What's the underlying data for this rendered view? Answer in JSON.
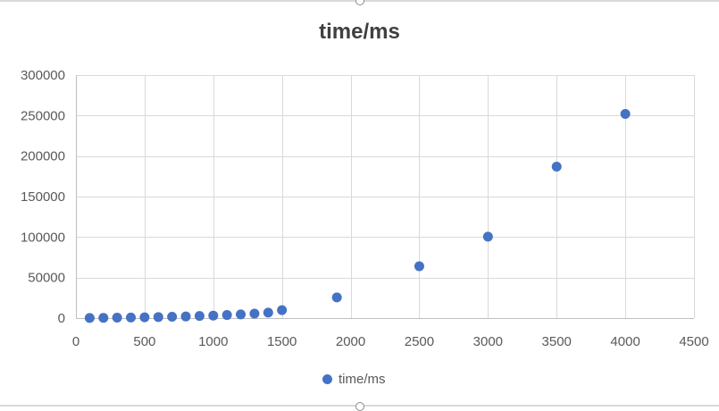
{
  "chart_data": {
    "type": "scatter",
    "title": "time/ms",
    "xlabel": "",
    "ylabel": "",
    "xlim": [
      0,
      4500
    ],
    "ylim": [
      0,
      300000
    ],
    "x_ticks": [
      0,
      500,
      1000,
      1500,
      2000,
      2500,
      3000,
      3500,
      4000,
      4500
    ],
    "y_ticks": [
      0,
      50000,
      100000,
      150000,
      200000,
      250000,
      300000
    ],
    "grid": true,
    "legend_position": "bottom",
    "marker_color": "#4472c4",
    "series": [
      {
        "name": "time/ms",
        "x": [
          100,
          200,
          300,
          400,
          500,
          600,
          700,
          800,
          900,
          1000,
          1100,
          1200,
          1300,
          1400,
          1500,
          1900,
          2500,
          3000,
          3500,
          4000
        ],
        "y": [
          100,
          300,
          500,
          700,
          1000,
          1300,
          1700,
          2000,
          2600,
          3100,
          3800,
          4600,
          5500,
          6800,
          9800,
          25500,
          64000,
          100500,
          187000,
          252000
        ]
      }
    ]
  }
}
